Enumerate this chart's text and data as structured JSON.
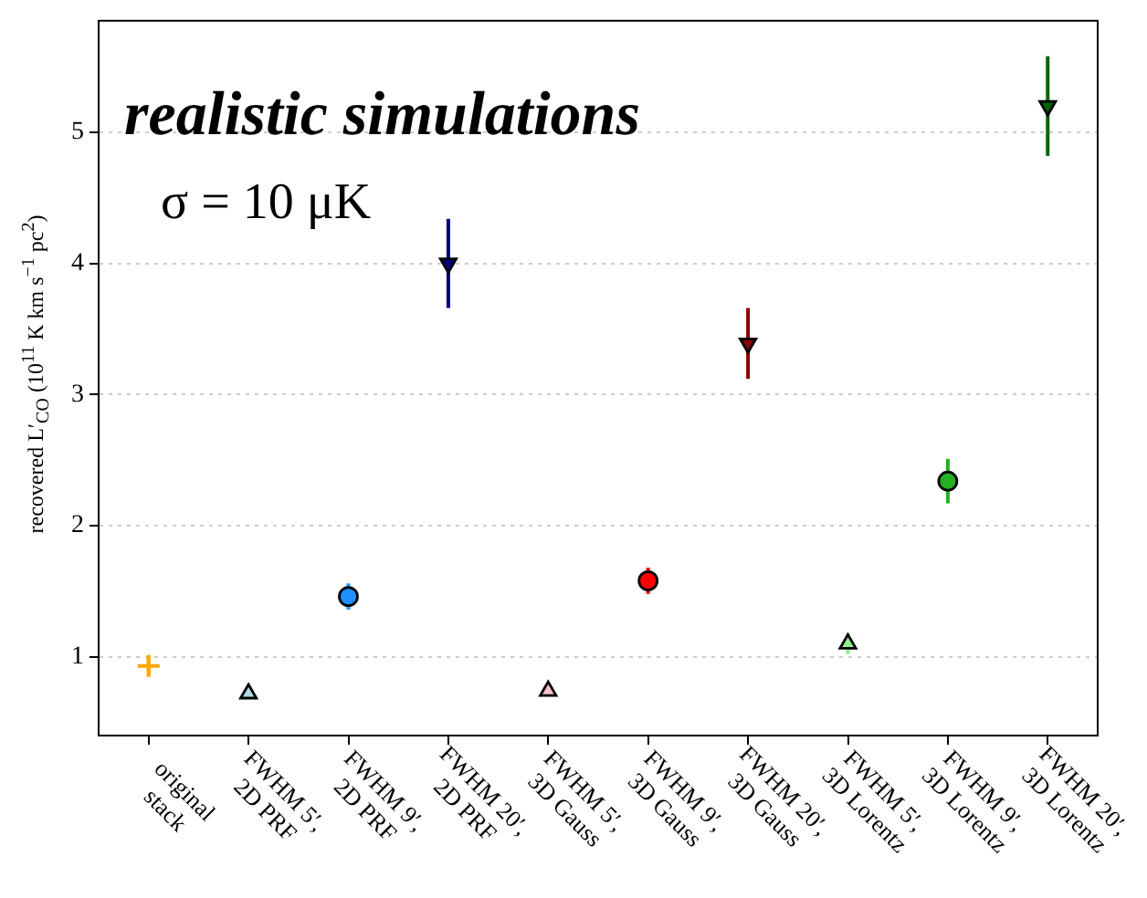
{
  "chart_data": {
    "type": "scatter",
    "ylabel": "recovered L′$_{CO}$ (10$^{11}$ K km s$^{−1}$ pc$^{2}$)",
    "categories": [
      "original\nstack",
      "FWHM 5′,\n2D PRF",
      "FWHM 9′,\n2D PRF",
      "FWHM 20′,\n2D PRF",
      "FWHM 5′,\n3D Gauss",
      "FWHM 9′,\n3D Gauss",
      "FWHM 20′,\n3D Gauss",
      "FWHM 5′,\n3D Lorentz",
      "FWHM 9′,\n3D Lorentz",
      "FWHM 20′,\n3D Lorentz"
    ],
    "series": [
      {
        "marker": "cross",
        "values": [
          0.93,
          null,
          null,
          null,
          null,
          null,
          null,
          null,
          null,
          null
        ],
        "errors": [
          0.07,
          null,
          null,
          null,
          null,
          null,
          null,
          null,
          null,
          null
        ],
        "colors": [
          "#ffa500",
          null,
          null,
          null,
          null,
          null,
          null,
          null,
          null,
          null
        ]
      },
      {
        "marker": "triangle",
        "values": [
          null,
          0.72,
          null,
          null,
          0.74,
          null,
          null,
          1.1,
          null,
          null
        ],
        "errors": [
          null,
          null,
          null,
          null,
          null,
          null,
          null,
          0.08,
          null,
          null
        ],
        "colors": [
          null,
          "#add8e6",
          null,
          null,
          "#ffc0cb",
          null,
          null,
          "#90ee90",
          null,
          null
        ]
      },
      {
        "marker": "circle",
        "values": [
          null,
          null,
          1.46,
          null,
          null,
          1.58,
          null,
          null,
          2.34,
          null
        ],
        "errors": [
          null,
          null,
          0.1,
          null,
          null,
          0.1,
          null,
          null,
          0.17,
          null
        ],
        "colors": [
          null,
          null,
          "#1e90ff",
          null,
          null,
          "#ff0000",
          null,
          null,
          "#22b022",
          null
        ]
      },
      {
        "marker": "triangle_down",
        "values": [
          null,
          null,
          null,
          4.0,
          null,
          null,
          3.39,
          null,
          null,
          5.2
        ],
        "errors": [
          null,
          null,
          null,
          0.34,
          null,
          null,
          0.27,
          null,
          null,
          0.38
        ],
        "colors": [
          null,
          null,
          null,
          "#000080",
          null,
          null,
          "#8b0000",
          null,
          null,
          "#006400"
        ]
      }
    ],
    "ylim": [
      0.4,
      5.85
    ],
    "yticks": [
      1,
      2,
      3,
      4,
      5
    ],
    "grid": "y",
    "annotations": [
      "realistic simulations",
      "σ = 10 μK"
    ]
  }
}
